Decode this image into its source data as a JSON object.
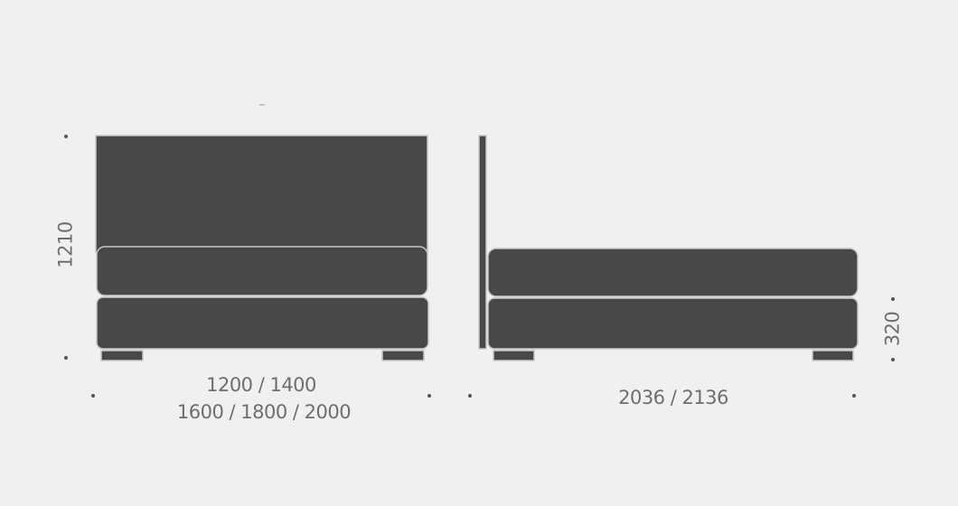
{
  "colors": {
    "background": "#eff0ef",
    "furniture": "#484848",
    "outline": "#c8c8c8",
    "text": "#6e6e6e"
  },
  "front_view": {
    "height_label": "1210",
    "width_label_line1": "1200 / 1400",
    "width_label_line2": "1600 / 1800 / 2000"
  },
  "side_view": {
    "length_label": "2036 / 2136",
    "base_height_label": "320"
  }
}
